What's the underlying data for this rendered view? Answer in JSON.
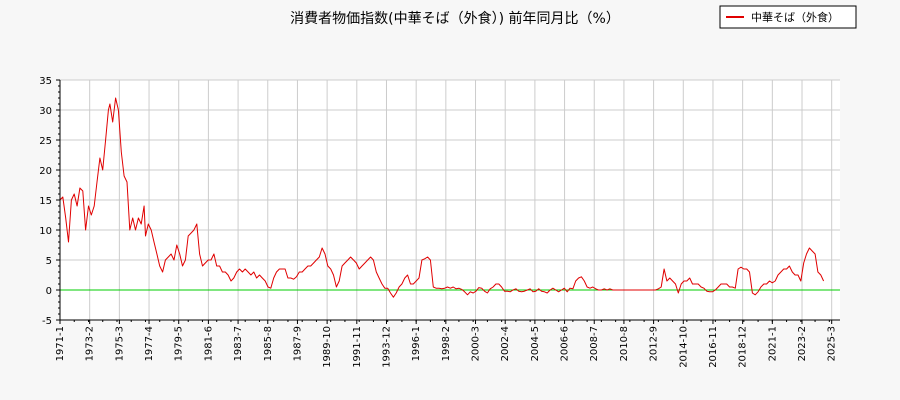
{
  "chart_data": {
    "type": "line",
    "title": "消費者物価指数(中華そば（外食）) 前年同月比（%）",
    "xlabel": "",
    "ylabel": "",
    "ylim": [
      -5,
      35
    ],
    "yticks": [
      -5,
      0,
      5,
      10,
      15,
      20,
      25,
      30,
      35
    ],
    "grid": true,
    "legend_position": "top-right",
    "x_tick_labels": [
      "1971-1",
      "1973-2",
      "1975-3",
      "1977-4",
      "1979-5",
      "1981-6",
      "1983-7",
      "1985-8",
      "1987-9",
      "1989-10",
      "1991-11",
      "1993-12",
      "1996-1",
      "1998-2",
      "2000-3",
      "2002-4",
      "2004-5",
      "2006-6",
      "2008-7",
      "2010-8",
      "2012-9",
      "2014-10",
      "2016-11",
      "2018-12",
      "2021-1",
      "2023-2",
      "2025-3"
    ],
    "x_start": 1971.0,
    "x_end": 2025.75,
    "reference_line": {
      "y": 0,
      "color": "#00cc00"
    },
    "series": [
      {
        "name": "中華そば（外食）",
        "color": "#e00000",
        "points": [
          [
            1971.0,
            15
          ],
          [
            1971.2,
            15.5
          ],
          [
            1971.4,
            12
          ],
          [
            1971.6,
            8
          ],
          [
            1971.8,
            15
          ],
          [
            1972.0,
            16
          ],
          [
            1972.2,
            14
          ],
          [
            1972.4,
            17
          ],
          [
            1972.6,
            16.5
          ],
          [
            1972.8,
            10
          ],
          [
            1973.0,
            14
          ],
          [
            1973.2,
            12.5
          ],
          [
            1973.4,
            14
          ],
          [
            1973.6,
            18
          ],
          [
            1973.8,
            22
          ],
          [
            1974.0,
            20
          ],
          [
            1974.2,
            25
          ],
          [
            1974.4,
            30
          ],
          [
            1974.5,
            31
          ],
          [
            1974.7,
            28
          ],
          [
            1974.9,
            32
          ],
          [
            1975.1,
            30
          ],
          [
            1975.3,
            23
          ],
          [
            1975.5,
            19
          ],
          [
            1975.7,
            18
          ],
          [
            1975.9,
            10
          ],
          [
            1976.1,
            12
          ],
          [
            1976.3,
            10
          ],
          [
            1976.5,
            12
          ],
          [
            1976.7,
            11
          ],
          [
            1976.9,
            14
          ],
          [
            1977.0,
            9
          ],
          [
            1977.2,
            11
          ],
          [
            1977.4,
            10
          ],
          [
            1977.6,
            8
          ],
          [
            1977.8,
            6
          ],
          [
            1978.0,
            4
          ],
          [
            1978.2,
            3
          ],
          [
            1978.4,
            5
          ],
          [
            1978.6,
            5.5
          ],
          [
            1978.8,
            6
          ],
          [
            1979.0,
            5
          ],
          [
            1979.2,
            7.5
          ],
          [
            1979.4,
            6
          ],
          [
            1979.6,
            4
          ],
          [
            1979.8,
            5
          ],
          [
            1980.0,
            9
          ],
          [
            1980.2,
            9.5
          ],
          [
            1980.4,
            10
          ],
          [
            1980.6,
            11
          ],
          [
            1980.8,
            6
          ],
          [
            1981.0,
            4
          ],
          [
            1981.2,
            4.5
          ],
          [
            1981.4,
            5
          ],
          [
            1981.6,
            5
          ],
          [
            1981.8,
            6
          ],
          [
            1982.0,
            4
          ],
          [
            1982.2,
            4
          ],
          [
            1982.4,
            3
          ],
          [
            1982.6,
            3
          ],
          [
            1982.8,
            2.5
          ],
          [
            1983.0,
            1.5
          ],
          [
            1983.2,
            2
          ],
          [
            1983.4,
            3
          ],
          [
            1983.6,
            3.5
          ],
          [
            1983.8,
            3
          ],
          [
            1984.0,
            3.5
          ],
          [
            1984.2,
            3
          ],
          [
            1984.4,
            2.5
          ],
          [
            1984.6,
            3
          ],
          [
            1984.8,
            2
          ],
          [
            1985.0,
            2.5
          ],
          [
            1985.2,
            2
          ],
          [
            1985.4,
            1.5
          ],
          [
            1985.6,
            0.5
          ],
          [
            1985.8,
            0.3
          ],
          [
            1986.0,
            2
          ],
          [
            1986.2,
            3
          ],
          [
            1986.4,
            3.5
          ],
          [
            1986.6,
            3.5
          ],
          [
            1986.8,
            3.5
          ],
          [
            1987.0,
            2
          ],
          [
            1987.2,
            2
          ],
          [
            1987.4,
            1.8
          ],
          [
            1987.6,
            2.2
          ],
          [
            1987.8,
            3
          ],
          [
            1988.0,
            3
          ],
          [
            1988.2,
            3.5
          ],
          [
            1988.4,
            4
          ],
          [
            1988.6,
            4
          ],
          [
            1988.8,
            4.5
          ],
          [
            1989.0,
            5
          ],
          [
            1989.2,
            5.5
          ],
          [
            1989.4,
            7
          ],
          [
            1989.6,
            6
          ],
          [
            1989.8,
            4
          ],
          [
            1990.0,
            3.5
          ],
          [
            1990.2,
            2.5
          ],
          [
            1990.4,
            0.5
          ],
          [
            1990.6,
            1.5
          ],
          [
            1990.8,
            4
          ],
          [
            1991.0,
            4.5
          ],
          [
            1991.2,
            5
          ],
          [
            1991.4,
            5.5
          ],
          [
            1991.6,
            5
          ],
          [
            1991.8,
            4.5
          ],
          [
            1992.0,
            3.5
          ],
          [
            1992.2,
            4
          ],
          [
            1992.4,
            4.5
          ],
          [
            1992.6,
            5
          ],
          [
            1992.8,
            5.5
          ],
          [
            1993.0,
            5
          ],
          [
            1993.2,
            3
          ],
          [
            1993.4,
            2
          ],
          [
            1993.6,
            1
          ],
          [
            1993.8,
            0.3
          ],
          [
            1994.0,
            0.3
          ],
          [
            1994.2,
            -0.5
          ],
          [
            1994.4,
            -1.2
          ],
          [
            1994.6,
            -0.5
          ],
          [
            1994.8,
            0.5
          ],
          [
            1995.0,
            1
          ],
          [
            1995.2,
            2
          ],
          [
            1995.4,
            2.5
          ],
          [
            1995.6,
            1
          ],
          [
            1995.8,
            1
          ],
          [
            1996.0,
            1.5
          ],
          [
            1996.2,
            2
          ],
          [
            1996.4,
            5
          ],
          [
            1996.6,
            5.2
          ],
          [
            1996.8,
            5.5
          ],
          [
            1997.0,
            5
          ],
          [
            1997.2,
            0.5
          ],
          [
            1997.4,
            0.3
          ],
          [
            1997.6,
            0.3
          ],
          [
            1997.8,
            0.2
          ],
          [
            1998.0,
            0.3
          ],
          [
            1998.2,
            0.5
          ],
          [
            1998.4,
            0.3
          ],
          [
            1998.6,
            0.5
          ],
          [
            1998.8,
            0.2
          ],
          [
            1999.0,
            0.3
          ],
          [
            1999.2,
            0.1
          ],
          [
            1999.4,
            -0.3
          ],
          [
            1999.6,
            -0.8
          ],
          [
            1999.8,
            -0.3
          ],
          [
            2000.0,
            -0.5
          ],
          [
            2000.2,
            -0.2
          ],
          [
            2000.4,
            0.4
          ],
          [
            2000.6,
            0.3
          ],
          [
            2000.8,
            -0.2
          ],
          [
            2001.0,
            -0.5
          ],
          [
            2001.2,
            0.2
          ],
          [
            2001.4,
            0.5
          ],
          [
            2001.6,
            1
          ],
          [
            2001.8,
            1
          ],
          [
            2002.0,
            0.5
          ],
          [
            2002.2,
            -0.2
          ],
          [
            2002.4,
            -0.2
          ],
          [
            2002.6,
            -0.3
          ],
          [
            2002.8,
            0
          ],
          [
            2003.0,
            0.2
          ],
          [
            2003.2,
            -0.2
          ],
          [
            2003.4,
            -0.3
          ],
          [
            2003.6,
            -0.2
          ],
          [
            2003.8,
            0
          ],
          [
            2004.0,
            0.2
          ],
          [
            2004.2,
            -0.3
          ],
          [
            2004.4,
            -0.2
          ],
          [
            2004.6,
            0.2
          ],
          [
            2004.8,
            -0.2
          ],
          [
            2005.0,
            -0.3
          ],
          [
            2005.2,
            -0.5
          ],
          [
            2005.4,
            0
          ],
          [
            2005.6,
            0.3
          ],
          [
            2005.8,
            0
          ],
          [
            2006.0,
            -0.3
          ],
          [
            2006.2,
            0
          ],
          [
            2006.4,
            0.3
          ],
          [
            2006.6,
            -0.3
          ],
          [
            2006.8,
            0.3
          ],
          [
            2007.0,
            0.2
          ],
          [
            2007.2,
            1.5
          ],
          [
            2007.4,
            2
          ],
          [
            2007.6,
            2.2
          ],
          [
            2007.8,
            1.5
          ],
          [
            2008.0,
            0.5
          ],
          [
            2008.2,
            0.3
          ],
          [
            2008.4,
            0.5
          ],
          [
            2008.6,
            0.2
          ],
          [
            2008.8,
            0
          ],
          [
            2009.0,
            0
          ],
          [
            2009.2,
            0.2
          ],
          [
            2009.4,
            0
          ],
          [
            2009.6,
            0.2
          ],
          [
            2009.8,
            0
          ],
          [
            2010.0,
            0
          ],
          [
            2010.2,
            0
          ],
          [
            2010.4,
            0
          ],
          [
            2010.6,
            0
          ],
          [
            2010.8,
            0
          ],
          [
            2011.0,
            0
          ],
          [
            2011.2,
            0
          ],
          [
            2011.4,
            0
          ],
          [
            2011.6,
            0
          ],
          [
            2011.8,
            0
          ],
          [
            2012.0,
            0
          ],
          [
            2012.2,
            0
          ],
          [
            2012.4,
            0
          ],
          [
            2012.6,
            0
          ],
          [
            2012.8,
            0
          ],
          [
            2013.0,
            0.2
          ],
          [
            2013.2,
            0.5
          ],
          [
            2013.4,
            3.5
          ],
          [
            2013.6,
            1.5
          ],
          [
            2013.8,
            2
          ],
          [
            2014.0,
            1.5
          ],
          [
            2014.2,
            1
          ],
          [
            2014.4,
            -0.5
          ],
          [
            2014.6,
            1
          ],
          [
            2014.8,
            1.5
          ],
          [
            2015.0,
            1.5
          ],
          [
            2015.2,
            2
          ],
          [
            2015.4,
            1
          ],
          [
            2015.6,
            1
          ],
          [
            2015.8,
            1
          ],
          [
            2016.0,
            0.5
          ],
          [
            2016.2,
            0.3
          ],
          [
            2016.4,
            -0.2
          ],
          [
            2016.6,
            -0.3
          ],
          [
            2016.8,
            -0.3
          ],
          [
            2017.0,
            0
          ],
          [
            2017.2,
            0.5
          ],
          [
            2017.4,
            1
          ],
          [
            2017.6,
            1
          ],
          [
            2017.8,
            1
          ],
          [
            2018.0,
            0.5
          ],
          [
            2018.2,
            0.5
          ],
          [
            2018.4,
            0.3
          ],
          [
            2018.6,
            3.5
          ],
          [
            2018.8,
            3.8
          ],
          [
            2019.0,
            3.5
          ],
          [
            2019.2,
            3.5
          ],
          [
            2019.4,
            3
          ],
          [
            2019.6,
            -0.5
          ],
          [
            2019.8,
            -0.8
          ],
          [
            2020.0,
            -0.3
          ],
          [
            2020.2,
            0.5
          ],
          [
            2020.4,
            1
          ],
          [
            2020.6,
            1
          ],
          [
            2020.8,
            1.5
          ],
          [
            2021.0,
            1.2
          ],
          [
            2021.2,
            1.5
          ],
          [
            2021.4,
            2.5
          ],
          [
            2021.6,
            3
          ],
          [
            2021.8,
            3.5
          ],
          [
            2022.0,
            3.5
          ],
          [
            2022.2,
            4
          ],
          [
            2022.4,
            3
          ],
          [
            2022.6,
            2.5
          ],
          [
            2022.8,
            2.5
          ],
          [
            2023.0,
            1.5
          ],
          [
            2023.2,
            4.5
          ],
          [
            2023.4,
            6
          ],
          [
            2023.6,
            7
          ],
          [
            2023.8,
            6.5
          ],
          [
            2024.0,
            6
          ],
          [
            2024.2,
            3
          ],
          [
            2024.4,
            2.5
          ],
          [
            2024.6,
            1.5
          ]
        ]
      }
    ]
  }
}
